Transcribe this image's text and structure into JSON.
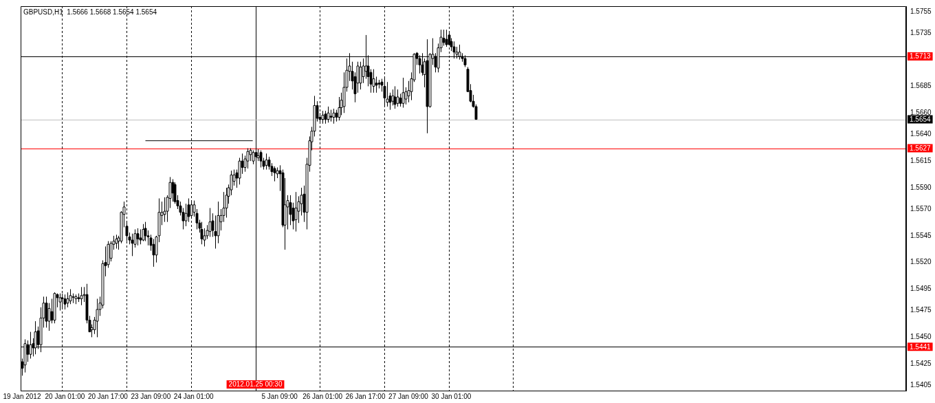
{
  "chart_data": {
    "type": "candlestick",
    "title": "GBPUSD,H1  1.5666 1.5668 1.5654 1.5654",
    "color": "#000000",
    "legend": false,
    "grid": false,
    "categories": [
      "19 Jan 2012",
      null,
      null,
      null,
      null,
      null,
      null,
      null,
      null,
      null,
      null,
      null,
      null,
      null,
      null,
      null,
      "20 Jan 01:00",
      null,
      null,
      null,
      null,
      null,
      null,
      null,
      null,
      null,
      null,
      null,
      null,
      null,
      null,
      null,
      "20 Jan 17:00",
      null,
      null,
      null,
      null,
      null,
      null,
      null,
      null,
      null,
      null,
      null,
      null,
      null,
      null,
      null,
      "23 Jan 09:00",
      null,
      null,
      null,
      null,
      null,
      null,
      null,
      null,
      null,
      null,
      null,
      null,
      null,
      null,
      null,
      "24 Jan 01:00",
      null,
      null,
      null,
      null,
      null,
      null,
      null,
      null,
      null,
      null,
      null,
      null,
      null,
      null,
      null,
      null,
      null,
      null,
      null,
      null,
      null,
      null,
      null,
      null,
      null,
      null,
      null,
      null,
      null,
      null,
      null,
      "5 Jan 09:00",
      null,
      null,
      null,
      null,
      null,
      null,
      null,
      null,
      null,
      null,
      null,
      null,
      null,
      null,
      null,
      "26 Jan 01:00",
      null,
      null,
      null,
      null,
      null,
      null,
      null,
      null,
      null,
      null,
      null,
      null,
      null,
      null,
      null,
      "26 Jan 17:00",
      null,
      null,
      null,
      null,
      null,
      null,
      null,
      null,
      null,
      null,
      null,
      null,
      null,
      null,
      null,
      "27 Jan 09:00",
      null,
      null,
      null,
      null,
      null,
      null,
      null,
      null,
      null,
      null,
      null,
      null,
      null,
      null,
      null,
      "30 Jan 01:00",
      null,
      null,
      null,
      null,
      null,
      null,
      null,
      null,
      null,
      null,
      null,
      null,
      null,
      null,
      null,
      null,
      null,
      null,
      null,
      null,
      null,
      null,
      null,
      null,
      null,
      null,
      null,
      null,
      null,
      null,
      null,
      null,
      null,
      null,
      null,
      null,
      null,
      null,
      null,
      null,
      null,
      null,
      null,
      null,
      null,
      null,
      null,
      null,
      null,
      null,
      null,
      null,
      null,
      null,
      null,
      null,
      null,
      null,
      null,
      null,
      null,
      null,
      null,
      null,
      null,
      null,
      null,
      null,
      null,
      null,
      null,
      null,
      null,
      null,
      null,
      null,
      null,
      null,
      null,
      null,
      null,
      null,
      null,
      null,
      null,
      null,
      null,
      null,
      null,
      null,
      null,
      null,
      null,
      null,
      null,
      null,
      null,
      null,
      null,
      null,
      null,
      null,
      null,
      null,
      null,
      null,
      null,
      null,
      null,
      null,
      null,
      null,
      null,
      null,
      null,
      null,
      null,
      null,
      null,
      null,
      null,
      null,
      null,
      null,
      null,
      null,
      null,
      null,
      null,
      null,
      null,
      null,
      null,
      null,
      null,
      null,
      null,
      null,
      null,
      null,
      null,
      null,
      null,
      null,
      null,
      null,
      null,
      null,
      null,
      null,
      null,
      null,
      null,
      null,
      null,
      null,
      null,
      null,
      null,
      null,
      null,
      null,
      null,
      null,
      null,
      null,
      null,
      null,
      null
    ],
    "ohlc": [
      [
        1.5427,
        1.543,
        1.5414,
        1.5421
      ],
      [
        1.5424,
        1.5448,
        1.5417,
        1.5444
      ],
      [
        1.5443,
        1.5447,
        1.5427,
        1.5434
      ],
      [
        1.5434,
        1.5455,
        1.543,
        1.5443
      ],
      [
        1.5444,
        1.5449,
        1.5432,
        1.544
      ],
      [
        1.544,
        1.5465,
        1.5434,
        1.5455
      ],
      [
        1.5456,
        1.546,
        1.5439,
        1.5443
      ],
      [
        1.5443,
        1.5478,
        1.5436,
        1.5468
      ],
      [
        1.5468,
        1.5488,
        1.5459,
        1.5482
      ],
      [
        1.5482,
        1.5488,
        1.5459,
        1.5465
      ],
      [
        1.5465,
        1.5482,
        1.5456,
        1.5477
      ],
      [
        1.5474,
        1.5486,
        1.5463,
        1.5466
      ],
      [
        1.5466,
        1.5492,
        1.5463,
        1.5491
      ],
      [
        1.549,
        1.5491,
        1.5478,
        1.5487
      ],
      [
        1.5483,
        1.5491,
        1.5475,
        1.5487
      ],
      [
        1.5487,
        1.5491,
        1.5477,
        1.5486
      ],
      [
        1.5486,
        1.549,
        1.5476,
        1.5481
      ],
      [
        1.5482,
        1.5492,
        1.5478,
        1.5486
      ],
      [
        1.5484,
        1.5495,
        1.5481,
        1.5489
      ],
      [
        1.5488,
        1.5491,
        1.5482,
        1.5488
      ],
      [
        1.5486,
        1.549,
        1.5481,
        1.5488
      ],
      [
        1.5487,
        1.5491,
        1.5483,
        1.5486
      ],
      [
        1.5486,
        1.5497,
        1.548,
        1.5489
      ],
      [
        1.5489,
        1.5497,
        1.5483,
        1.549
      ],
      [
        1.549,
        1.55,
        1.5463,
        1.5466
      ],
      [
        1.5466,
        1.547,
        1.5455,
        1.5455
      ],
      [
        1.5457,
        1.5462,
        1.545,
        1.5459
      ],
      [
        1.5457,
        1.5469,
        1.5453,
        1.5466
      ],
      [
        1.5465,
        1.5486,
        1.545,
        1.5476
      ],
      [
        1.5476,
        1.5488,
        1.547,
        1.5482
      ],
      [
        1.548,
        1.5522,
        1.5477,
        1.5519
      ],
      [
        1.552,
        1.5535,
        1.5507,
        1.5517
      ],
      [
        1.5518,
        1.554,
        1.5515,
        1.5537
      ],
      [
        1.5524,
        1.554,
        1.5521,
        1.5538
      ],
      [
        1.5537,
        1.5545,
        1.5532,
        1.554
      ],
      [
        1.5538,
        1.5546,
        1.5533,
        1.5542
      ],
      [
        1.554,
        1.5545,
        1.5532,
        1.5543
      ],
      [
        1.554,
        1.5568,
        1.5538,
        1.5567
      ],
      [
        1.5565,
        1.5577,
        1.5553,
        1.5572
      ],
      [
        1.5554,
        1.5559,
        1.554,
        1.5545
      ],
      [
        1.5544,
        1.5548,
        1.5537,
        1.5541
      ],
      [
        1.5541,
        1.5547,
        1.5526,
        1.5538
      ],
      [
        1.5537,
        1.5551,
        1.5534,
        1.5547
      ],
      [
        1.5547,
        1.5552,
        1.5536,
        1.5542
      ],
      [
        1.5543,
        1.5551,
        1.5537,
        1.5541
      ],
      [
        1.5541,
        1.5556,
        1.554,
        1.5551
      ],
      [
        1.5552,
        1.5558,
        1.554,
        1.5545
      ],
      [
        1.5545,
        1.555,
        1.5536,
        1.5544
      ],
      [
        1.5543,
        1.5546,
        1.5531,
        1.5536
      ],
      [
        1.5537,
        1.5542,
        1.5516,
        1.5527
      ],
      [
        1.5527,
        1.5545,
        1.552,
        1.5544
      ],
      [
        1.5545,
        1.558,
        1.5539,
        1.5567
      ],
      [
        1.5564,
        1.5577,
        1.5555,
        1.5567
      ],
      [
        1.5565,
        1.5581,
        1.5558,
        1.5568
      ],
      [
        1.5568,
        1.5583,
        1.5558,
        1.5581
      ],
      [
        1.558,
        1.56,
        1.5571,
        1.5595
      ],
      [
        1.5595,
        1.5598,
        1.5577,
        1.5585
      ],
      [
        1.5593,
        1.5595,
        1.5575,
        1.5577
      ],
      [
        1.5578,
        1.5583,
        1.557,
        1.5573
      ],
      [
        1.5573,
        1.5577,
        1.5564,
        1.5567
      ],
      [
        1.5567,
        1.5571,
        1.5551,
        1.5559
      ],
      [
        1.5559,
        1.5575,
        1.5554,
        1.5566
      ],
      [
        1.5574,
        1.558,
        1.5558,
        1.5563
      ],
      [
        1.5564,
        1.5577,
        1.5562,
        1.5574
      ],
      [
        1.5567,
        1.5578,
        1.5563,
        1.5574
      ],
      [
        1.5566,
        1.557,
        1.5551,
        1.5557
      ],
      [
        1.5557,
        1.556,
        1.5548,
        1.5552
      ],
      [
        1.5551,
        1.5558,
        1.5537,
        1.5542
      ],
      [
        1.5541,
        1.5552,
        1.5535,
        1.5545
      ],
      [
        1.5545,
        1.5555,
        1.5542,
        1.555
      ],
      [
        1.5549,
        1.5571,
        1.5544,
        1.5558
      ],
      [
        1.5559,
        1.5566,
        1.5544,
        1.555
      ],
      [
        1.5549,
        1.5564,
        1.5533,
        1.5545
      ],
      [
        1.5545,
        1.5577,
        1.5538,
        1.5564
      ],
      [
        1.5558,
        1.557,
        1.555,
        1.5564
      ],
      [
        1.5564,
        1.5586,
        1.5558,
        1.5571
      ],
      [
        1.5571,
        1.559,
        1.5562,
        1.5583
      ],
      [
        1.5582,
        1.5593,
        1.5575,
        1.559
      ],
      [
        1.5588,
        1.5606,
        1.5583,
        1.5602
      ],
      [
        1.5596,
        1.5607,
        1.5592,
        1.5602
      ],
      [
        1.5604,
        1.5607,
        1.559,
        1.5599
      ],
      [
        1.5599,
        1.5618,
        1.5593,
        1.5615
      ],
      [
        1.5615,
        1.5622,
        1.5603,
        1.5609
      ],
      [
        1.5609,
        1.562,
        1.5605,
        1.5617
      ],
      [
        1.5615,
        1.5627,
        1.5608,
        1.5624
      ],
      [
        1.5621,
        1.5627,
        1.5615,
        1.5625
      ],
      [
        1.5615,
        1.5625,
        1.5612,
        1.5623
      ],
      [
        1.5623,
        1.5627,
        1.5615,
        1.5619
      ],
      [
        1.5618,
        1.5626,
        1.5615,
        1.562
      ],
      [
        1.5623,
        1.5625,
        1.5609,
        1.5615
      ],
      [
        1.5615,
        1.5618,
        1.5607,
        1.561
      ],
      [
        1.5611,
        1.5622,
        1.5607,
        1.5616
      ],
      [
        1.5616,
        1.5619,
        1.5607,
        1.561
      ],
      [
        1.561,
        1.5613,
        1.5601,
        1.5605
      ],
      [
        1.5608,
        1.561,
        1.5596,
        1.5604
      ],
      [
        1.5603,
        1.5609,
        1.5599,
        1.5606
      ],
      [
        1.5606,
        1.5611,
        1.5587,
        1.5603
      ],
      [
        1.5604,
        1.5607,
        1.5553,
        1.5555
      ],
      [
        1.5555,
        1.5599,
        1.5532,
        1.5574
      ],
      [
        1.5572,
        1.5583,
        1.5551,
        1.5578
      ],
      [
        1.5576,
        1.5583,
        1.5555,
        1.5565
      ],
      [
        1.5571,
        1.5576,
        1.5551,
        1.5559
      ],
      [
        1.556,
        1.5586,
        1.5549,
        1.5571
      ],
      [
        1.5568,
        1.5582,
        1.5557,
        1.5577
      ],
      [
        1.5575,
        1.559,
        1.5564,
        1.5583
      ],
      [
        1.5584,
        1.5592,
        1.5558,
        1.5567
      ],
      [
        1.5567,
        1.5618,
        1.5551,
        1.5612
      ],
      [
        1.5611,
        1.5638,
        1.5605,
        1.5634
      ],
      [
        1.5633,
        1.5647,
        1.5625,
        1.5643
      ],
      [
        1.5643,
        1.5676,
        1.5638,
        1.5667
      ],
      [
        1.5667,
        1.5671,
        1.5652,
        1.5655
      ],
      [
        1.5656,
        1.566,
        1.565,
        1.5654
      ],
      [
        1.5654,
        1.5662,
        1.565,
        1.5658
      ],
      [
        1.5659,
        1.5662,
        1.565,
        1.5654
      ],
      [
        1.5654,
        1.5666,
        1.5651,
        1.566
      ],
      [
        1.5657,
        1.5663,
        1.5652,
        1.5656
      ],
      [
        1.5656,
        1.5664,
        1.565,
        1.566
      ],
      [
        1.566,
        1.5663,
        1.5652,
        1.5656
      ],
      [
        1.5656,
        1.5675,
        1.5653,
        1.5665
      ],
      [
        1.5665,
        1.5679,
        1.5658,
        1.5672
      ],
      [
        1.5666,
        1.5698,
        1.566,
        1.5684
      ],
      [
        1.5684,
        1.5711,
        1.568,
        1.57
      ],
      [
        1.5699,
        1.5716,
        1.569,
        1.5704
      ],
      [
        1.5699,
        1.5708,
        1.5682,
        1.569
      ],
      [
        1.5694,
        1.5698,
        1.567,
        1.5678
      ],
      [
        1.5688,
        1.5708,
        1.5679,
        1.5704
      ],
      [
        1.5688,
        1.5708,
        1.5682,
        1.5703
      ],
      [
        1.5694,
        1.5711,
        1.5688,
        1.5704
      ],
      [
        1.5699,
        1.5733,
        1.5692,
        1.5704
      ],
      [
        1.5704,
        1.5714,
        1.5685,
        1.5694
      ],
      [
        1.5698,
        1.5701,
        1.5679,
        1.5687
      ],
      [
        1.5685,
        1.5701,
        1.5679,
        1.5692
      ],
      [
        1.5688,
        1.5694,
        1.5679,
        1.5686
      ],
      [
        1.5688,
        1.5691,
        1.5683,
        1.5687
      ],
      [
        1.5689,
        1.5692,
        1.568,
        1.5686
      ],
      [
        1.5685,
        1.5693,
        1.5666,
        1.5674
      ],
      [
        1.567,
        1.5689,
        1.5666,
        1.5673
      ],
      [
        1.5676,
        1.5679,
        1.5663,
        1.567
      ],
      [
        1.5671,
        1.5682,
        1.5667,
        1.5676
      ],
      [
        1.5675,
        1.5685,
        1.5664,
        1.5668
      ],
      [
        1.5669,
        1.5682,
        1.5666,
        1.5675
      ],
      [
        1.5674,
        1.5678,
        1.5666,
        1.5669
      ],
      [
        1.5669,
        1.5693,
        1.5665,
        1.5679
      ],
      [
        1.5673,
        1.5684,
        1.5668,
        1.568
      ],
      [
        1.5676,
        1.569,
        1.567,
        1.5681
      ],
      [
        1.568,
        1.5698,
        1.5672,
        1.5692
      ],
      [
        1.5691,
        1.5716,
        1.5689,
        1.5715
      ],
      [
        1.5716,
        1.5717,
        1.5705,
        1.5711
      ],
      [
        1.5711,
        1.5714,
        1.5697,
        1.5705
      ],
      [
        1.5705,
        1.5716,
        1.5695,
        1.5698
      ],
      [
        1.5696,
        1.5711,
        1.5684,
        1.5708
      ],
      [
        1.5709,
        1.5729,
        1.5641,
        1.5666
      ],
      [
        1.5666,
        1.5716,
        1.5665,
        1.5715
      ],
      [
        1.5711,
        1.573,
        1.5705,
        1.5715
      ],
      [
        1.5713,
        1.5716,
        1.5698,
        1.5703
      ],
      [
        1.5702,
        1.5725,
        1.5698,
        1.5721
      ],
      [
        1.5721,
        1.5738,
        1.5717,
        1.5731
      ],
      [
        1.573,
        1.5738,
        1.5723,
        1.5726
      ],
      [
        1.5729,
        1.5738,
        1.5722,
        1.5724
      ],
      [
        1.5733,
        1.5736,
        1.5724,
        1.5724
      ],
      [
        1.5727,
        1.573,
        1.5718,
        1.5722
      ],
      [
        1.5722,
        1.5727,
        1.5711,
        1.5717
      ],
      [
        1.5715,
        1.5722,
        1.5711,
        1.5717
      ],
      [
        1.5713,
        1.5724,
        1.571,
        1.5717
      ],
      [
        1.5713,
        1.5716,
        1.5708,
        1.5711
      ],
      [
        1.5711,
        1.5714,
        1.5703,
        1.5705
      ],
      [
        1.5701,
        1.5703,
        1.568,
        1.568
      ],
      [
        1.5681,
        1.5687,
        1.567,
        1.5671
      ],
      [
        1.5671,
        1.5677,
        1.5665,
        1.5666
      ],
      [
        1.5666,
        1.5668,
        1.5654,
        1.5654
      ],
      null,
      null,
      null,
      null,
      null,
      null,
      null,
      null,
      null,
      null,
      null,
      null,
      null,
      null,
      null,
      null,
      null,
      null,
      null,
      null,
      null,
      null,
      null,
      null,
      null,
      null,
      null,
      null,
      null,
      null,
      null,
      null,
      null,
      null,
      null,
      null,
      null,
      null,
      null,
      null,
      null,
      null,
      null,
      null,
      null,
      null,
      null,
      null,
      null,
      null,
      null,
      null,
      null,
      null,
      null,
      null,
      null,
      null,
      null,
      null,
      null,
      null,
      null,
      null,
      null,
      null,
      null,
      null,
      null,
      null,
      null,
      null,
      null,
      null,
      null,
      null,
      null,
      null,
      null,
      null,
      null,
      null,
      null,
      null,
      null,
      null,
      null,
      null,
      null,
      null,
      null,
      null,
      null,
      null,
      null,
      null,
      null,
      null,
      null,
      null,
      null,
      null,
      null,
      null,
      null,
      null,
      null,
      null,
      null,
      null,
      null,
      null,
      null,
      null,
      null,
      null,
      null,
      null,
      null,
      null,
      null,
      null,
      null,
      null,
      null,
      null,
      null,
      null,
      null,
      null,
      null,
      null,
      null,
      null,
      null,
      null,
      null,
      null,
      null,
      null,
      null,
      null,
      null,
      null,
      null,
      null,
      null,
      null,
      null,
      null,
      null,
      null,
      null,
      null,
      null,
      null,
      null,
      null,
      null,
      null
    ],
    "series": [
      {
        "type": "line",
        "color": "#000000",
        "values": [
          null,
          null,
          null,
          null,
          null,
          null,
          null,
          null,
          null,
          null,
          null,
          null,
          null,
          null,
          null,
          null,
          null,
          null,
          null,
          null,
          null,
          null,
          null,
          null,
          null,
          null,
          null,
          null,
          null,
          null,
          null,
          null,
          null,
          null,
          null,
          null,
          null,
          null,
          null,
          null,
          null,
          null,
          null,
          null,
          null,
          null,
          1.5634,
          null,
          null,
          null,
          null,
          null,
          null,
          null,
          null,
          null,
          null,
          null,
          null,
          null,
          null,
          null,
          null,
          null,
          null,
          null,
          null,
          null,
          null,
          null,
          null,
          null,
          null,
          null,
          null,
          null,
          null,
          null,
          null,
          null,
          null,
          null,
          null,
          null,
          null,
          null,
          1.5634,
          null,
          null,
          null,
          null,
          null,
          null,
          null,
          null,
          null,
          null,
          null,
          null,
          null,
          null,
          null,
          null,
          null,
          null,
          null,
          null,
          null,
          null,
          null,
          null,
          null,
          null,
          null,
          null,
          null,
          null,
          null,
          null,
          null,
          null,
          null,
          null,
          null,
          null,
          null,
          null,
          null,
          null,
          null,
          null,
          null,
          null,
          null,
          null,
          null,
          null,
          null,
          null,
          null,
          null,
          null,
          null,
          null,
          null,
          null,
          null,
          null,
          null,
          null,
          null,
          null,
          null,
          null,
          null,
          null,
          null,
          null,
          null,
          null,
          null,
          null,
          null,
          null,
          null,
          null,
          null,
          null,
          null,
          null,
          null,
          null,
          null,
          null,
          null,
          null,
          null,
          null,
          null,
          null,
          null,
          null,
          null,
          null,
          null,
          null,
          null,
          null,
          null,
          null,
          null,
          null,
          null,
          null,
          null,
          null,
          null,
          null,
          null,
          null,
          null,
          null,
          null,
          null,
          null,
          null,
          null,
          null,
          null,
          null,
          null,
          null,
          null,
          null,
          null,
          null,
          null,
          null,
          null,
          null,
          null,
          null,
          null,
          null,
          null,
          null,
          null,
          null,
          null,
          null,
          null,
          null,
          null,
          null,
          null,
          null,
          null,
          null,
          null,
          null,
          null,
          null,
          null,
          null,
          null,
          null,
          null,
          null,
          null,
          null,
          null,
          null,
          null,
          null,
          null,
          null,
          null,
          null,
          null,
          null,
          null,
          null,
          null,
          null,
          null,
          null,
          null,
          null,
          null,
          null,
          null,
          null,
          null,
          null,
          null,
          null,
          null,
          null,
          null,
          null,
          null,
          null,
          null,
          null,
          null,
          null,
          null,
          null,
          null,
          null,
          null,
          null,
          null,
          null,
          null,
          null,
          null,
          null,
          null,
          null,
          null,
          null,
          null,
          null,
          null,
          null,
          null,
          null,
          null,
          null,
          null,
          null,
          null,
          null,
          null,
          null,
          null,
          null,
          null,
          null,
          null,
          null,
          null,
          null,
          null,
          null,
          null,
          null,
          null,
          null
        ]
      }
    ],
    "annotations": [
      "2012.01.25 00:30"
    ],
    "ylim": [
      1.54,
      1.576
    ],
    "yticks": [
      1.5755,
      1.5735,
      1.5685,
      {
        "value": 1.566,
        "label": "1.5660"
      },
      {
        "value": 1.564,
        "label": "1.5640"
      },
      1.5615,
      {
        "value": 1.559,
        "label": "1.5590"
      },
      {
        "value": 1.557,
        "label": "1.5570"
      },
      1.5545,
      {
        "value": 1.552,
        "label": "1.5520"
      },
      1.5495,
      1.5475,
      {
        "value": 1.545,
        "label": "1.5450"
      },
      1.5425,
      1.5405
    ],
    "ref_lines": [
      {
        "axis": "y",
        "value": 1.5713,
        "label": "1.5713",
        "color": "#000000"
      },
      {
        "axis": "y",
        "value": 1.5654,
        "label": "1.5654",
        "color": "#c0c0c0"
      },
      {
        "axis": "y",
        "value": 1.5627,
        "label": "1.5627",
        "color": "#ff0000"
      },
      {
        "axis": "y",
        "value": 1.5441,
        "label": "1.5441",
        "color": "#000000"
      }
    ]
  }
}
